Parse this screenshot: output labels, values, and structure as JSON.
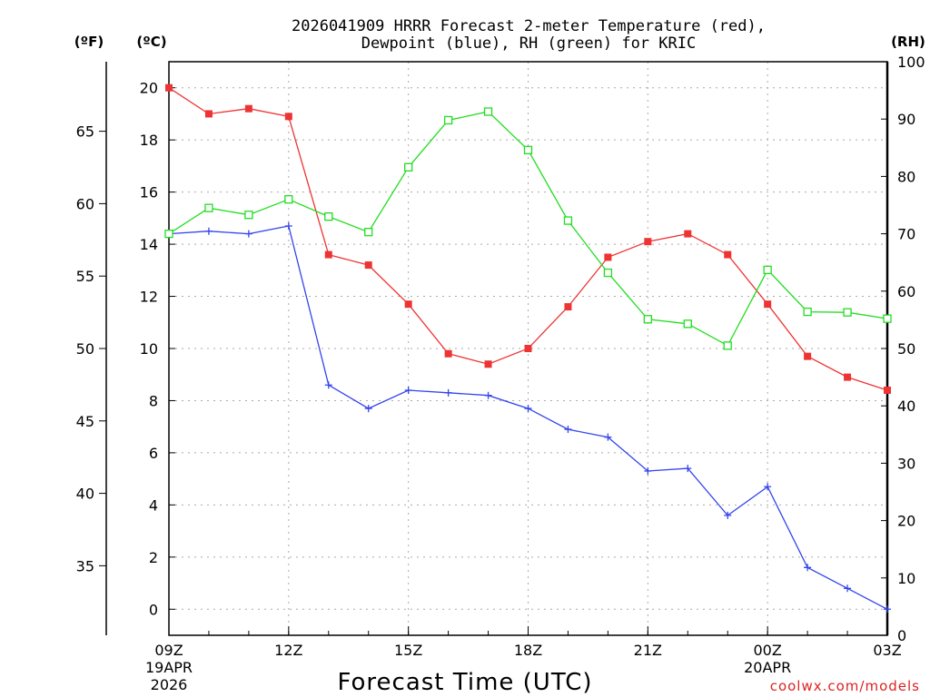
{
  "chart_data": {
    "type": "line",
    "title_line1": "2026041909 HRRR Forecast 2-meter Temperature (red),",
    "title_line2": "Dewpoint (blue), RH (green) for KRIC",
    "xlabel": "Forecast Time (UTC)",
    "unit_f": "(ºF)",
    "unit_c": "(ºC)",
    "unit_rh": "(RH)",
    "credit": "coolwx.com/models",
    "x_hours": [
      0,
      1,
      2,
      3,
      4,
      5,
      6,
      7,
      8,
      9,
      10,
      11,
      12,
      13,
      14,
      15,
      16,
      17,
      18
    ],
    "x_ticks": [
      {
        "hour": 0,
        "label": "09Z",
        "sub1": "19APR",
        "sub2": "2026"
      },
      {
        "hour": 3,
        "label": "12Z",
        "sub1": "",
        "sub2": ""
      },
      {
        "hour": 6,
        "label": "15Z",
        "sub1": "",
        "sub2": ""
      },
      {
        "hour": 9,
        "label": "18Z",
        "sub1": "",
        "sub2": ""
      },
      {
        "hour": 12,
        "label": "21Z",
        "sub1": "",
        "sub2": ""
      },
      {
        "hour": 15,
        "label": "00Z",
        "sub1": "20APR",
        "sub2": ""
      },
      {
        "hour": 18,
        "label": "03Z",
        "sub1": "",
        "sub2": ""
      }
    ],
    "c_axis": {
      "min": -1,
      "max": 21,
      "ticks": [
        "0",
        "2",
        "4",
        "6",
        "8",
        "10",
        "12",
        "14",
        "16",
        "18",
        "20"
      ]
    },
    "f_axis": {
      "ticks": [
        "35",
        "40",
        "45",
        "50",
        "55",
        "60",
        "65"
      ]
    },
    "rh_axis": {
      "min": 0,
      "max": 100,
      "ticks": [
        "0",
        "10",
        "20",
        "30",
        "40",
        "50",
        "60",
        "70",
        "80",
        "90",
        "100"
      ]
    },
    "series": [
      {
        "name": "Temperature",
        "unit": "C",
        "color": "#ee3333",
        "marker": "filled-square",
        "values": [
          20.0,
          19.0,
          19.2,
          18.9,
          13.6,
          13.2,
          11.7,
          9.8,
          9.4,
          10.0,
          11.6,
          13.5,
          14.1,
          14.4,
          13.6,
          11.7,
          9.7,
          8.9,
          8.4
        ]
      },
      {
        "name": "Dewpoint",
        "unit": "C",
        "color": "#3344ee",
        "marker": "plus",
        "values": [
          14.4,
          14.5,
          14.4,
          14.7,
          8.6,
          7.7,
          8.4,
          8.3,
          8.2,
          7.7,
          6.9,
          6.6,
          5.3,
          5.4,
          3.6,
          4.7,
          1.6,
          0.8,
          0.0
        ]
      },
      {
        "name": "RH",
        "unit": "%",
        "color": "#22dd22",
        "marker": "open-square",
        "values": [
          70,
          74.5,
          73.3,
          76,
          73,
          70.3,
          81.6,
          89.8,
          91.3,
          84.6,
          72.3,
          63.2,
          55.1,
          54.3,
          50.5,
          63.7,
          56.4,
          56.3,
          55.2
        ]
      }
    ]
  }
}
